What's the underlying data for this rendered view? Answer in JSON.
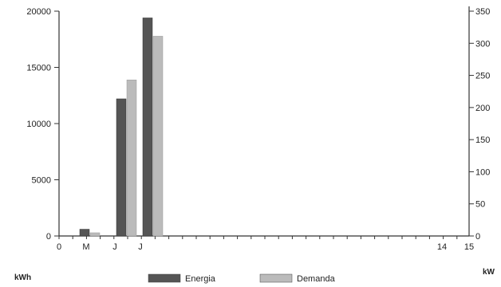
{
  "chart_data": {
    "type": "bar",
    "categories": [
      "M",
      "J",
      "J"
    ],
    "x_tick_labels": [
      "0",
      "M",
      "J",
      "J",
      "14",
      "15"
    ],
    "series": [
      {
        "name": "Energia",
        "axis": "left",
        "color": "#555555",
        "values": [
          600,
          12200,
          19400
        ]
      },
      {
        "name": "Demanda",
        "axis": "right",
        "color": "#bbbbbb",
        "values": [
          5,
          243,
          311
        ]
      }
    ],
    "y_left": {
      "label": "kWh",
      "ylim": [
        0,
        20000
      ],
      "ticks": [
        0,
        5000,
        10000,
        15000,
        20000
      ]
    },
    "y_right": {
      "label": "kW",
      "ylim": [
        0,
        350
      ],
      "ticks": [
        0,
        50,
        100,
        150,
        200,
        250,
        300,
        350
      ]
    },
    "legend": {
      "position": "bottom-center"
    },
    "grid": false
  }
}
